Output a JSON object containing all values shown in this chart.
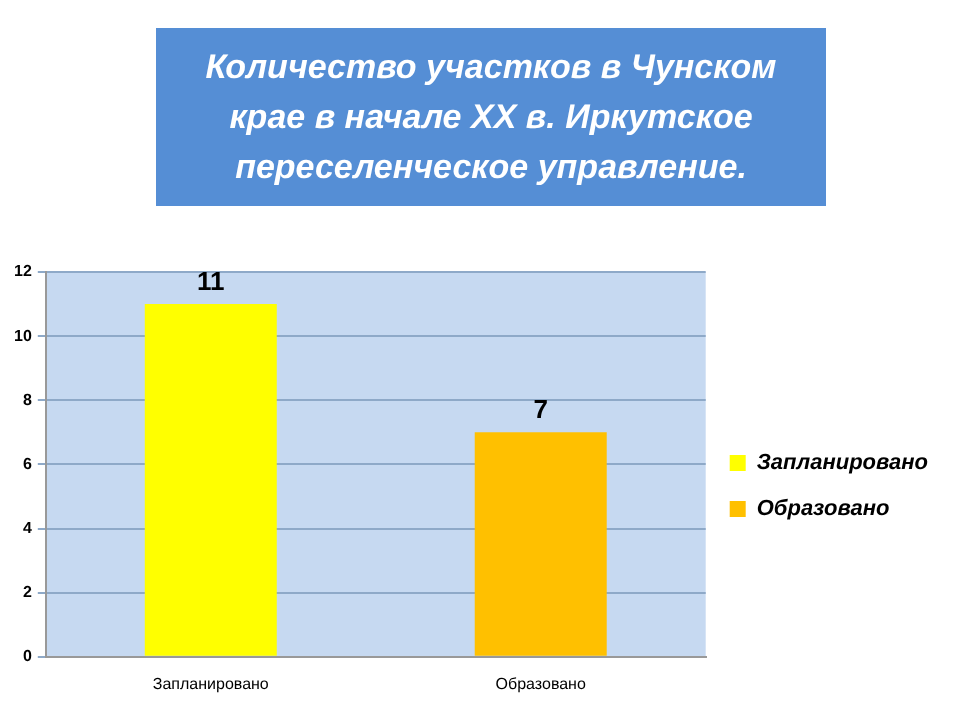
{
  "chart_data": {
    "type": "bar",
    "title": "Количество участков в Чунском крае в начале XX в. Иркутское переселенческое управление.",
    "categories": [
      "Запланировано",
      "Образовано"
    ],
    "series": [
      {
        "name": "Запланировано",
        "color": "#ffff00",
        "values": [
          11,
          null
        ]
      },
      {
        "name": "Образовано",
        "color": "#ffc000",
        "values": [
          null,
          7
        ]
      }
    ],
    "ylim": [
      0,
      12
    ],
    "yticks": [
      0,
      2,
      4,
      6,
      8,
      10,
      12
    ],
    "grid": "y",
    "legend": "right",
    "data_labels": true
  }
}
